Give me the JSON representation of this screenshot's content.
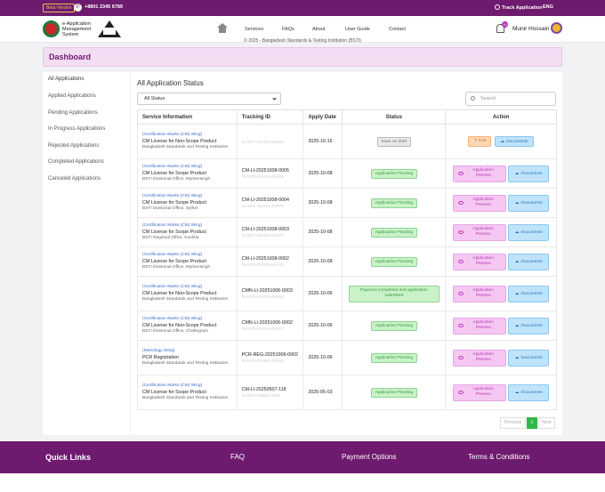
{
  "topbar": {
    "beta_label": "Beta Version",
    "phone": "+8801 2345 6789",
    "track_label": "Track Application",
    "language": "ENG"
  },
  "header": {
    "app_title": "e-Application Management System",
    "nav": [
      "Services",
      "FAQs",
      "About",
      "User Guide",
      "Contact"
    ],
    "notification_count": "10",
    "user_name": "Munir Hossain"
  },
  "banner": {
    "title": "Dashboard"
  },
  "sidebar": {
    "items": [
      "All Applications",
      "Applied Applications",
      "Pending Applications",
      "In Progress Applications",
      "Rejected Applications",
      "Completed Applications",
      "Canceled Applications"
    ]
  },
  "main": {
    "title": "All Application Status",
    "filter_value": "All Status",
    "search_placeholder": "Search",
    "columns": [
      "Service Information",
      "Tracking ID",
      "Apply Date",
      "Status",
      "Action"
    ],
    "rows": [
      {
        "category": "(Certification Marks (CM) Wing)",
        "service": "CM License for Non-Scope Product",
        "org": "Bangladesh Standards and Testing Institution",
        "tracking": "",
        "tracking_sub": "01-BSTI-251016-202553",
        "date": "2025-10-16",
        "status": "Save as draft",
        "status_type": "draft"
      },
      {
        "category": "(Certification Marks (CM) Wing)",
        "service": "CM License for Scope Product",
        "org": "BSTI Divisional Office, Mymensingh",
        "tracking": "CM-LI-20251008-0005",
        "tracking_sub": "01-BSTI-251008-202608",
        "date": "2025-10-08",
        "status": "Application Pending",
        "status_type": "pending"
      },
      {
        "category": "(Certification Marks (CM) Wing)",
        "service": "CM License for Scope Product",
        "org": "BSTI Divisional Office, Sylhet",
        "tracking": "CM-LI-20251008-0004",
        "tracking_sub": "01-BSTI-251008-202577",
        "date": "2025-10-08",
        "status": "Application Pending",
        "status_type": "pending"
      },
      {
        "category": "(Certification Marks (CM) Wing)",
        "service": "CM License for Scope Product",
        "org": "BSTI Regional Office, Kushtia",
        "tracking": "CM-LI-20251008-0003",
        "tracking_sub": "01-BSTI-251008-163672",
        "date": "2025-10-08",
        "status": "Application Pending",
        "status_type": "pending"
      },
      {
        "category": "(Certification Marks (CM) Wing)",
        "service": "CM License for Scope Product",
        "org": "BSTI Divisional Office, Mymensingh",
        "tracking": "CM-LI-20251008-0002",
        "tracking_sub": "01-BSTI-251008-126744",
        "date": "2025-10-08",
        "status": "Application Pending",
        "status_type": "pending"
      },
      {
        "category": "(Certification Marks (CM) Wing)",
        "service": "CM License for Non-Scope Product",
        "org": "Bangladesh Standards and Testing Institution",
        "tracking": "CMN-LI-20251006-0003",
        "tracking_sub": "01-BSTI-251006-206663",
        "date": "2025-10-06",
        "status": "Payment completed and application submitted",
        "status_type": "paid"
      },
      {
        "category": "(Certification Marks (CM) Wing)",
        "service": "CM License for Non-Scope Product",
        "org": "BSTI Divisional Office, Chattogram",
        "tracking": "CMN-LI-20251006-0002",
        "tracking_sub": "01-BSTI-251006-202477",
        "date": "2025-10-06",
        "status": "Application Pending",
        "status_type": "pending"
      },
      {
        "category": "(Metrology Wing)",
        "service": "PCR Registration",
        "org": "Bangladesh Standards and Testing Institution",
        "tracking": "PCR-REG-20251006-0002",
        "tracking_sub": "01-BSTI-251006-203652",
        "date": "2025-10-06",
        "status": "Application Pending",
        "status_type": "pending"
      },
      {
        "category": "(Certification Marks (CM) Wing)",
        "service": "CM License for Scope Product",
        "org": "Bangladesh Standards and Testing Institution",
        "tracking": "CM-LI-20250507-118",
        "tracking_sub": "01-BSTI-250503-4493",
        "date": "2025-05-03",
        "status": "Application Pending",
        "status_type": "pending"
      }
    ],
    "actions": {
      "edit": "Edit",
      "preview": "Application Preview",
      "documents": "Documents"
    },
    "pagination": {
      "previous": "Previous",
      "current": "1",
      "next": "Next"
    }
  },
  "footer": {
    "quick_links": "Quick Links",
    "links": [
      "FAQ",
      "Payment Options",
      "Terms & Conditions"
    ],
    "copyright": "© 2025 - Bangladesh Standards & Testing Institution (BSTI)"
  },
  "colors": {
    "brand": "#6e1a6e",
    "banner_bg": "#f3ddf3",
    "pending": "#3a9a3a",
    "preview": "#b53ab5",
    "documents": "#2a7ab8",
    "edit": "#d47c2a"
  }
}
